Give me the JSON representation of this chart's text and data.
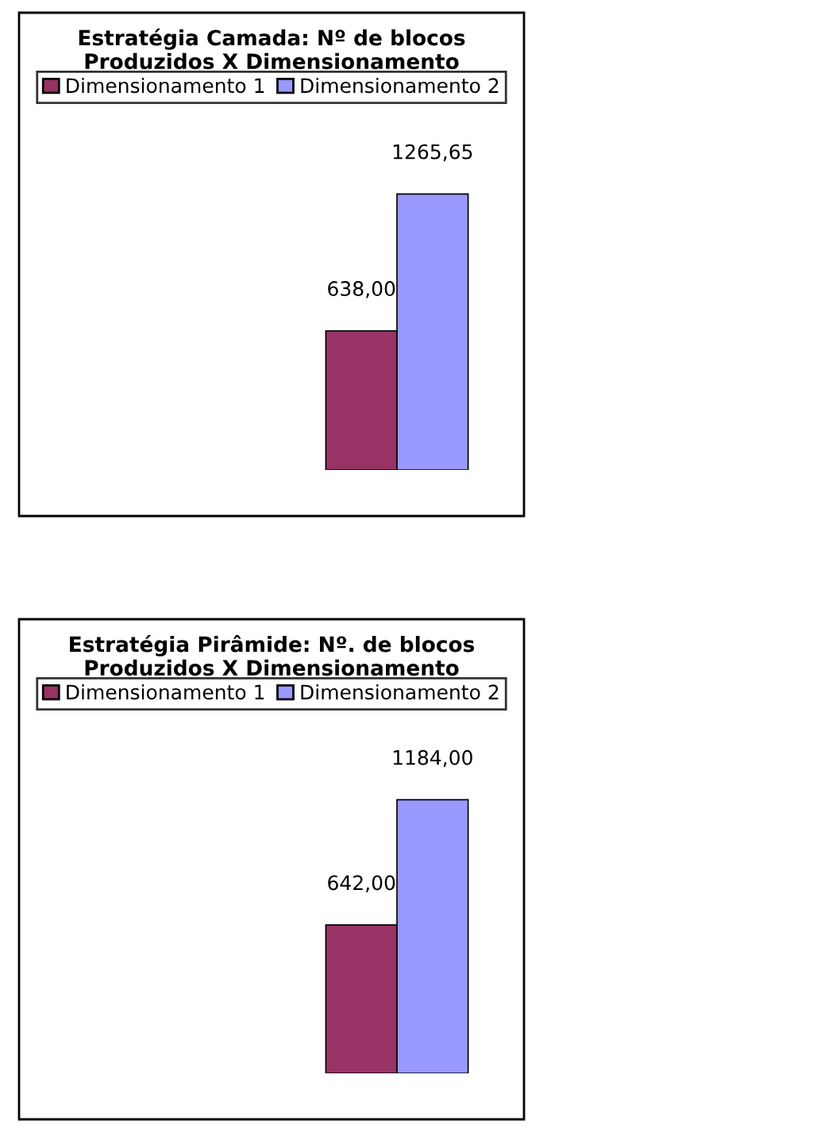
{
  "chart_data": [
    {
      "type": "bar",
      "title": "Estratégia Camada: Nº de blocos\nProduzidos X Dimensionamento",
      "categories": [
        null
      ],
      "legend": "top",
      "series": [
        {
          "name": "Dimensionamento 1",
          "color": "#993366",
          "values": [
            638.0
          ],
          "value_labels": [
            "638,00"
          ]
        },
        {
          "name": "Dimensionamento 2",
          "color": "#9999ff",
          "values": [
            1265.65
          ],
          "value_labels": [
            "1265,65"
          ]
        }
      ]
    },
    {
      "type": "bar",
      "title": "Estratégia Pirâmide: Nº. de blocos\nProduzidos X Dimensionamento",
      "categories": [
        null
      ],
      "legend": "top",
      "series": [
        {
          "name": "Dimensionamento 1",
          "color": "#993366",
          "values": [
            642.0
          ],
          "value_labels": [
            "642,00"
          ]
        },
        {
          "name": "Dimensionamento 2",
          "color": "#9999ff",
          "values": [
            1184.0
          ],
          "value_labels": [
            "1184,00"
          ]
        }
      ]
    }
  ]
}
